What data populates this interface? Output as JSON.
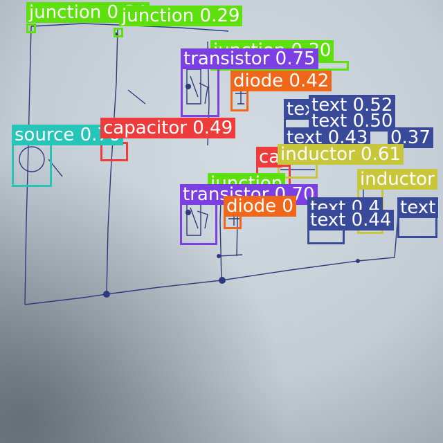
{
  "image": {
    "description_colors": {
      "paper": "#c9d3dc",
      "shadow": "#6f7b83",
      "ink": "#2d3a7a"
    }
  },
  "detections": [
    {
      "label": "junction 0.34",
      "cls": "junction"
    },
    {
      "label": "junction 0.29",
      "cls": "junction"
    },
    {
      "label": "junction 0.30",
      "cls": "junction"
    },
    {
      "label": "transistor 0.75",
      "cls": "transistor"
    },
    {
      "label": "diode 0.42",
      "cls": "diode"
    },
    {
      "label": "text",
      "cls": "text"
    },
    {
      "label": "text 0.52",
      "cls": "text"
    },
    {
      "label": "text 0.50",
      "cls": "text"
    },
    {
      "label": "text 0.43",
      "cls": "text"
    },
    {
      "label": "0.37",
      "cls": "text"
    },
    {
      "label": "source 0.76",
      "cls": "source"
    },
    {
      "label": "capacitor 0.49",
      "cls": "capacitor"
    },
    {
      "label": "ca",
      "cls": "capacitor"
    },
    {
      "label": "inductor 0.61",
      "cls": "inductor"
    },
    {
      "label": "junction",
      "cls": "junction"
    },
    {
      "label": "inductor",
      "cls": "inductor"
    },
    {
      "label": "transistor 0.70",
      "cls": "transistor"
    },
    {
      "label": "diode 0",
      "cls": "diode"
    },
    {
      "label": "text 0.4",
      "cls": "text"
    },
    {
      "label": "text",
      "cls": "text"
    },
    {
      "label": "text 0.44",
      "cls": "text"
    }
  ]
}
